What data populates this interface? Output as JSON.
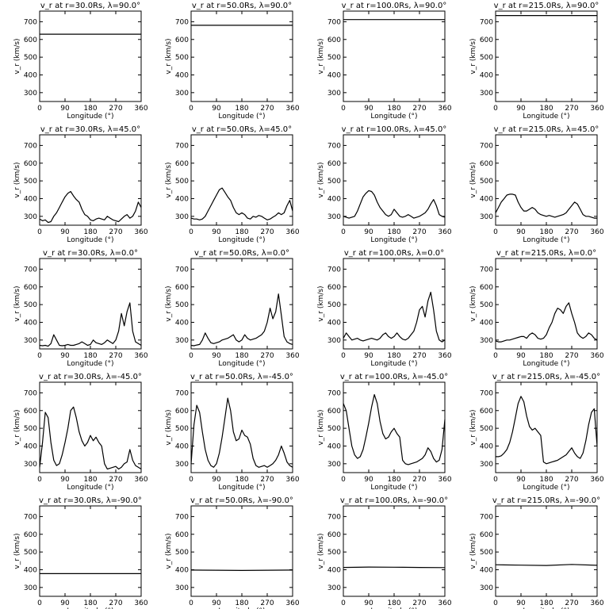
{
  "xlabel": "Longitude (°)",
  "ylabel": "v_r (km/s)",
  "xticks": [
    0,
    90,
    180,
    270,
    360
  ],
  "yticks": [
    300,
    400,
    500,
    600,
    700
  ],
  "xlim": [
    0,
    360
  ],
  "ylim": [
    250,
    760
  ],
  "chart_data": [
    {
      "type": "line",
      "title": "v_r at r=30.0Rs, λ=90.0°",
      "x": [
        0,
        360
      ],
      "y": [
        630,
        630
      ]
    },
    {
      "type": "line",
      "title": "v_r at r=50.0Rs, λ=90.0°",
      "x": [
        0,
        360
      ],
      "y": [
        680,
        680
      ]
    },
    {
      "type": "line",
      "title": "v_r at r=100.0Rs, λ=90.0°",
      "x": [
        0,
        360
      ],
      "y": [
        712,
        712
      ]
    },
    {
      "type": "line",
      "title": "v_r at r=215.0Rs, λ=90.0°",
      "x": [
        0,
        360
      ],
      "y": [
        735,
        735
      ]
    },
    {
      "type": "line",
      "title": "v_r at r=30.0Rs, λ=45.0°",
      "x": [
        0,
        10,
        20,
        30,
        40,
        50,
        60,
        70,
        80,
        90,
        100,
        110,
        120,
        130,
        140,
        150,
        160,
        170,
        180,
        190,
        200,
        210,
        220,
        230,
        240,
        250,
        260,
        270,
        280,
        290,
        300,
        310,
        320,
        330,
        340,
        350,
        360
      ],
      "y": [
        285,
        275,
        280,
        265,
        270,
        300,
        320,
        350,
        380,
        410,
        430,
        440,
        415,
        395,
        380,
        340,
        310,
        300,
        280,
        275,
        285,
        290,
        285,
        280,
        300,
        290,
        280,
        275,
        270,
        285,
        300,
        310,
        290,
        300,
        330,
        380,
        350
      ]
    },
    {
      "type": "line",
      "title": "v_r at r=50.0Rs, λ=45.0°",
      "x": [
        0,
        10,
        20,
        30,
        40,
        50,
        60,
        70,
        80,
        90,
        100,
        110,
        120,
        130,
        140,
        150,
        160,
        170,
        180,
        190,
        200,
        210,
        220,
        230,
        240,
        250,
        260,
        270,
        280,
        290,
        300,
        310,
        320,
        330,
        340,
        350,
        360
      ],
      "y": [
        290,
        285,
        285,
        280,
        285,
        300,
        330,
        360,
        390,
        420,
        450,
        460,
        435,
        410,
        390,
        350,
        320,
        310,
        320,
        310,
        290,
        285,
        300,
        295,
        305,
        300,
        290,
        280,
        285,
        295,
        305,
        320,
        310,
        320,
        360,
        390,
        330
      ]
    },
    {
      "type": "line",
      "title": "v_r at r=100.0Rs, λ=45.0°",
      "x": [
        0,
        10,
        20,
        30,
        40,
        50,
        60,
        70,
        80,
        90,
        100,
        110,
        120,
        130,
        140,
        150,
        160,
        170,
        180,
        190,
        200,
        210,
        220,
        230,
        240,
        250,
        260,
        270,
        280,
        290,
        300,
        310,
        320,
        330,
        340,
        350,
        360
      ],
      "y": [
        300,
        295,
        290,
        295,
        300,
        330,
        370,
        410,
        430,
        445,
        440,
        420,
        380,
        350,
        330,
        310,
        300,
        310,
        340,
        320,
        300,
        295,
        300,
        310,
        300,
        290,
        295,
        300,
        310,
        320,
        340,
        370,
        395,
        360,
        310,
        300,
        295
      ]
    },
    {
      "type": "line",
      "title": "v_r at r=215.0Rs, λ=45.0°",
      "x": [
        0,
        10,
        20,
        30,
        40,
        50,
        60,
        70,
        80,
        90,
        100,
        110,
        120,
        130,
        140,
        150,
        160,
        170,
        180,
        190,
        200,
        210,
        220,
        230,
        240,
        250,
        260,
        270,
        280,
        290,
        300,
        310,
        320,
        330,
        340,
        350,
        360
      ],
      "y": [
        320,
        350,
        380,
        400,
        420,
        425,
        425,
        420,
        380,
        350,
        330,
        330,
        340,
        350,
        340,
        320,
        310,
        305,
        300,
        305,
        300,
        295,
        300,
        305,
        310,
        320,
        340,
        360,
        380,
        370,
        340,
        310,
        300,
        300,
        295,
        290,
        290
      ]
    },
    {
      "type": "line",
      "title": "v_r at r=30.0Rs, λ=0.0°",
      "x": [
        0,
        10,
        20,
        30,
        40,
        50,
        60,
        70,
        80,
        90,
        100,
        110,
        120,
        130,
        140,
        150,
        160,
        170,
        180,
        190,
        200,
        210,
        220,
        230,
        240,
        250,
        260,
        270,
        280,
        290,
        300,
        310,
        320,
        330,
        340,
        350,
        360
      ],
      "y": [
        270,
        268,
        270,
        265,
        280,
        330,
        300,
        270,
        268,
        270,
        275,
        270,
        270,
        275,
        280,
        290,
        280,
        270,
        275,
        300,
        285,
        280,
        275,
        285,
        300,
        290,
        280,
        300,
        350,
        450,
        380,
        460,
        510,
        350,
        290,
        280,
        270
      ]
    },
    {
      "type": "line",
      "title": "v_r at r=50.0Rs, λ=0.0°",
      "x": [
        0,
        10,
        20,
        30,
        40,
        50,
        60,
        70,
        80,
        90,
        100,
        110,
        120,
        130,
        140,
        150,
        160,
        170,
        180,
        190,
        200,
        210,
        220,
        230,
        240,
        250,
        260,
        270,
        280,
        290,
        300,
        310,
        320,
        330,
        340,
        350,
        360
      ],
      "y": [
        270,
        268,
        272,
        275,
        300,
        340,
        310,
        285,
        280,
        285,
        290,
        300,
        305,
        310,
        320,
        330,
        300,
        290,
        300,
        330,
        310,
        300,
        305,
        310,
        320,
        330,
        350,
        400,
        480,
        420,
        460,
        560,
        440,
        320,
        290,
        280,
        275
      ]
    },
    {
      "type": "line",
      "title": "v_r at r=100.0Rs, λ=0.0°",
      "x": [
        0,
        10,
        20,
        30,
        40,
        50,
        60,
        70,
        80,
        90,
        100,
        110,
        120,
        130,
        140,
        150,
        160,
        170,
        180,
        190,
        200,
        210,
        220,
        230,
        240,
        250,
        260,
        270,
        280,
        290,
        300,
        310,
        320,
        330,
        340,
        350,
        360
      ],
      "y": [
        310,
        340,
        320,
        300,
        305,
        310,
        300,
        295,
        300,
        305,
        310,
        305,
        300,
        310,
        330,
        340,
        320,
        310,
        320,
        340,
        320,
        305,
        300,
        310,
        330,
        350,
        400,
        470,
        490,
        430,
        520,
        570,
        470,
        350,
        300,
        290,
        300
      ]
    },
    {
      "type": "line",
      "title": "v_r at r=215.0Rs, λ=0.0°",
      "x": [
        0,
        10,
        20,
        30,
        40,
        50,
        60,
        70,
        80,
        90,
        100,
        110,
        120,
        130,
        140,
        150,
        160,
        170,
        180,
        190,
        200,
        210,
        220,
        230,
        240,
        250,
        260,
        270,
        280,
        290,
        300,
        310,
        320,
        330,
        340,
        350,
        360
      ],
      "y": [
        295,
        290,
        290,
        295,
        300,
        300,
        305,
        310,
        315,
        320,
        320,
        310,
        330,
        340,
        330,
        310,
        305,
        310,
        330,
        370,
        400,
        450,
        480,
        470,
        450,
        490,
        510,
        450,
        400,
        340,
        320,
        310,
        320,
        340,
        330,
        310,
        300
      ]
    },
    {
      "type": "line",
      "title": "v_r at r=30.0Rs, λ=-45.0°",
      "x": [
        0,
        10,
        20,
        30,
        40,
        50,
        60,
        70,
        80,
        90,
        100,
        110,
        120,
        130,
        140,
        150,
        160,
        170,
        180,
        190,
        200,
        210,
        220,
        230,
        240,
        250,
        260,
        270,
        280,
        290,
        300,
        310,
        320,
        330,
        340,
        350,
        360
      ],
      "y": [
        280,
        420,
        590,
        560,
        420,
        320,
        290,
        300,
        350,
        420,
        500,
        600,
        620,
        560,
        480,
        430,
        400,
        420,
        460,
        430,
        450,
        420,
        400,
        300,
        270,
        275,
        280,
        285,
        270,
        280,
        300,
        310,
        380,
        320,
        290,
        280,
        270
      ]
    },
    {
      "type": "line",
      "title": "v_r at r=50.0Rs, λ=-45.0°",
      "x": [
        0,
        10,
        20,
        30,
        40,
        50,
        60,
        70,
        80,
        90,
        100,
        110,
        120,
        130,
        140,
        150,
        160,
        170,
        180,
        190,
        200,
        210,
        220,
        230,
        240,
        250,
        260,
        270,
        280,
        290,
        300,
        310,
        320,
        330,
        340,
        350,
        360
      ],
      "y": [
        300,
        520,
        630,
        590,
        480,
        380,
        320,
        290,
        280,
        300,
        360,
        450,
        560,
        670,
        600,
        480,
        430,
        440,
        490,
        460,
        450,
        410,
        330,
        290,
        280,
        285,
        290,
        280,
        290,
        300,
        320,
        350,
        400,
        360,
        310,
        290,
        280
      ]
    },
    {
      "type": "line",
      "title": "v_r at r=100.0Rs, λ=-45.0°",
      "x": [
        0,
        10,
        20,
        30,
        40,
        50,
        60,
        70,
        80,
        90,
        100,
        110,
        120,
        130,
        140,
        150,
        160,
        170,
        180,
        190,
        200,
        210,
        220,
        230,
        240,
        250,
        260,
        270,
        280,
        290,
        300,
        310,
        320,
        330,
        340,
        350,
        360
      ],
      "y": [
        640,
        600,
        500,
        400,
        350,
        330,
        340,
        380,
        450,
        530,
        620,
        690,
        640,
        540,
        470,
        440,
        450,
        480,
        500,
        470,
        450,
        320,
        300,
        295,
        300,
        305,
        310,
        320,
        330,
        350,
        390,
        370,
        330,
        310,
        320,
        380,
        550
      ]
    },
    {
      "type": "line",
      "title": "v_r at r=215.0Rs, λ=-45.0°",
      "x": [
        0,
        10,
        20,
        30,
        40,
        50,
        60,
        70,
        80,
        90,
        100,
        110,
        120,
        130,
        140,
        150,
        160,
        170,
        180,
        190,
        200,
        210,
        220,
        230,
        240,
        250,
        260,
        270,
        280,
        290,
        300,
        310,
        320,
        330,
        340,
        350,
        360
      ],
      "y": [
        340,
        340,
        345,
        360,
        380,
        420,
        480,
        560,
        640,
        680,
        650,
        570,
        510,
        490,
        500,
        480,
        460,
        310,
        300,
        305,
        310,
        315,
        320,
        330,
        340,
        350,
        370,
        390,
        360,
        340,
        330,
        360,
        430,
        520,
        590,
        610,
        400
      ]
    },
    {
      "type": "line",
      "title": "v_r at r=30.0Rs, λ=-90.0°",
      "x": [
        0,
        360
      ],
      "y": [
        378,
        378
      ]
    },
    {
      "type": "line",
      "title": "v_r at r=50.0Rs, λ=-90.0°",
      "x": [
        0,
        90,
        180,
        270,
        360
      ],
      "y": [
        398,
        397,
        396,
        397,
        398
      ]
    },
    {
      "type": "line",
      "title": "v_r at r=100.0Rs, λ=-90.0°",
      "x": [
        0,
        90,
        180,
        270,
        360
      ],
      "y": [
        413,
        415,
        414,
        413,
        412
      ]
    },
    {
      "type": "line",
      "title": "v_r at r=215.0Rs, λ=-90.0°",
      "x": [
        0,
        90,
        180,
        270,
        360
      ],
      "y": [
        428,
        426,
        424,
        430,
        425
      ]
    }
  ]
}
